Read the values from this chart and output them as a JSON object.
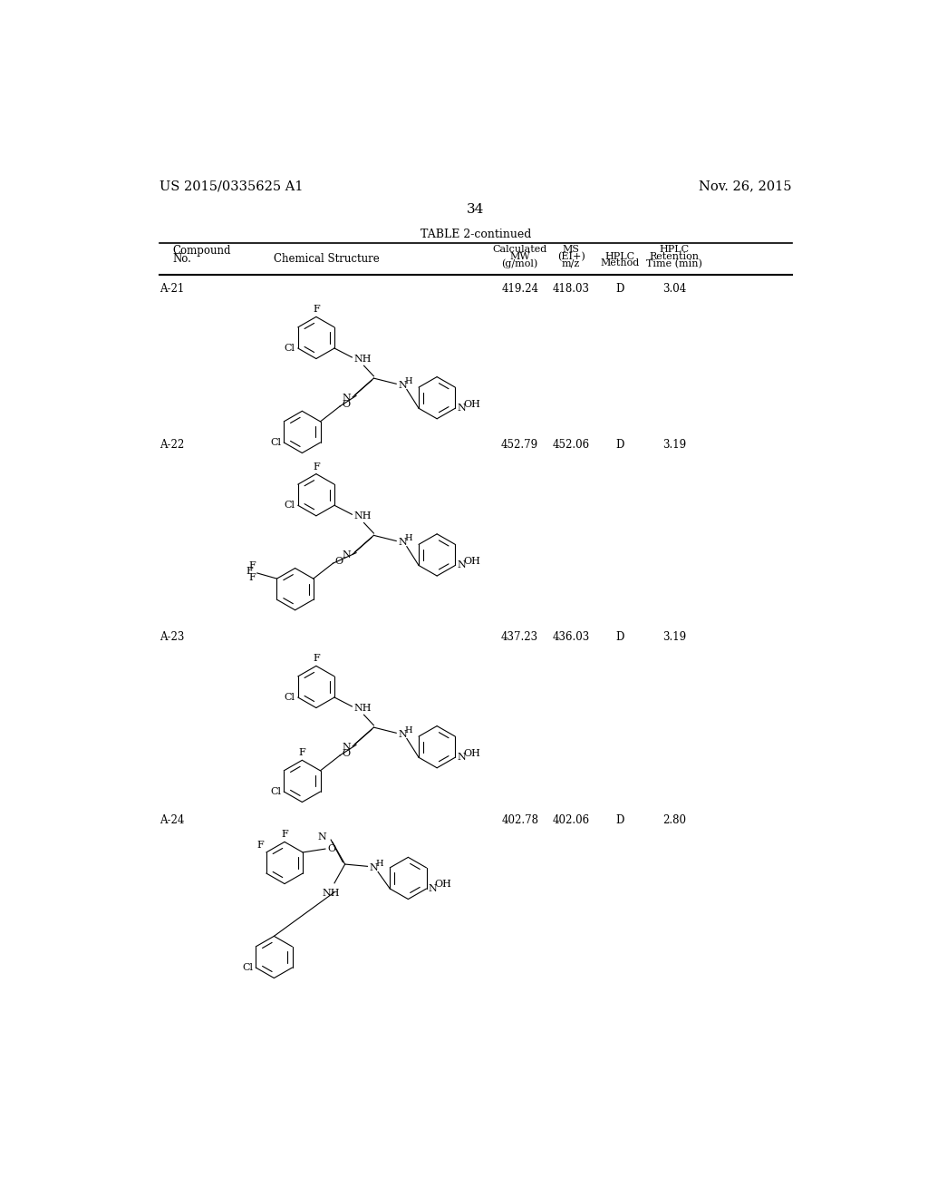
{
  "title_left": "US 2015/0335625 A1",
  "title_right": "Nov. 26, 2015",
  "page_number": "34",
  "table_title": "TABLE 2-continued",
  "background_color": "#ffffff",
  "text_color": "#000000",
  "rows": [
    {
      "compound": "A-21",
      "mw": "419.24",
      "ms": "418.03",
      "hplc_method": "D",
      "hplc_time": "3.04"
    },
    {
      "compound": "A-22",
      "mw": "452.79",
      "ms": "452.06",
      "hplc_method": "D",
      "hplc_time": "3.19"
    },
    {
      "compound": "A-23",
      "mw": "437.23",
      "ms": "436.03",
      "hplc_method": "D",
      "hplc_time": "3.19"
    },
    {
      "compound": "A-24",
      "mw": "402.78",
      "ms": "402.06",
      "hplc_method": "D",
      "hplc_time": "2.80"
    }
  ],
  "col_x": {
    "compound": 62,
    "mw": 575,
    "ms": 648,
    "hplc_method": 718,
    "hplc_time": 795
  }
}
